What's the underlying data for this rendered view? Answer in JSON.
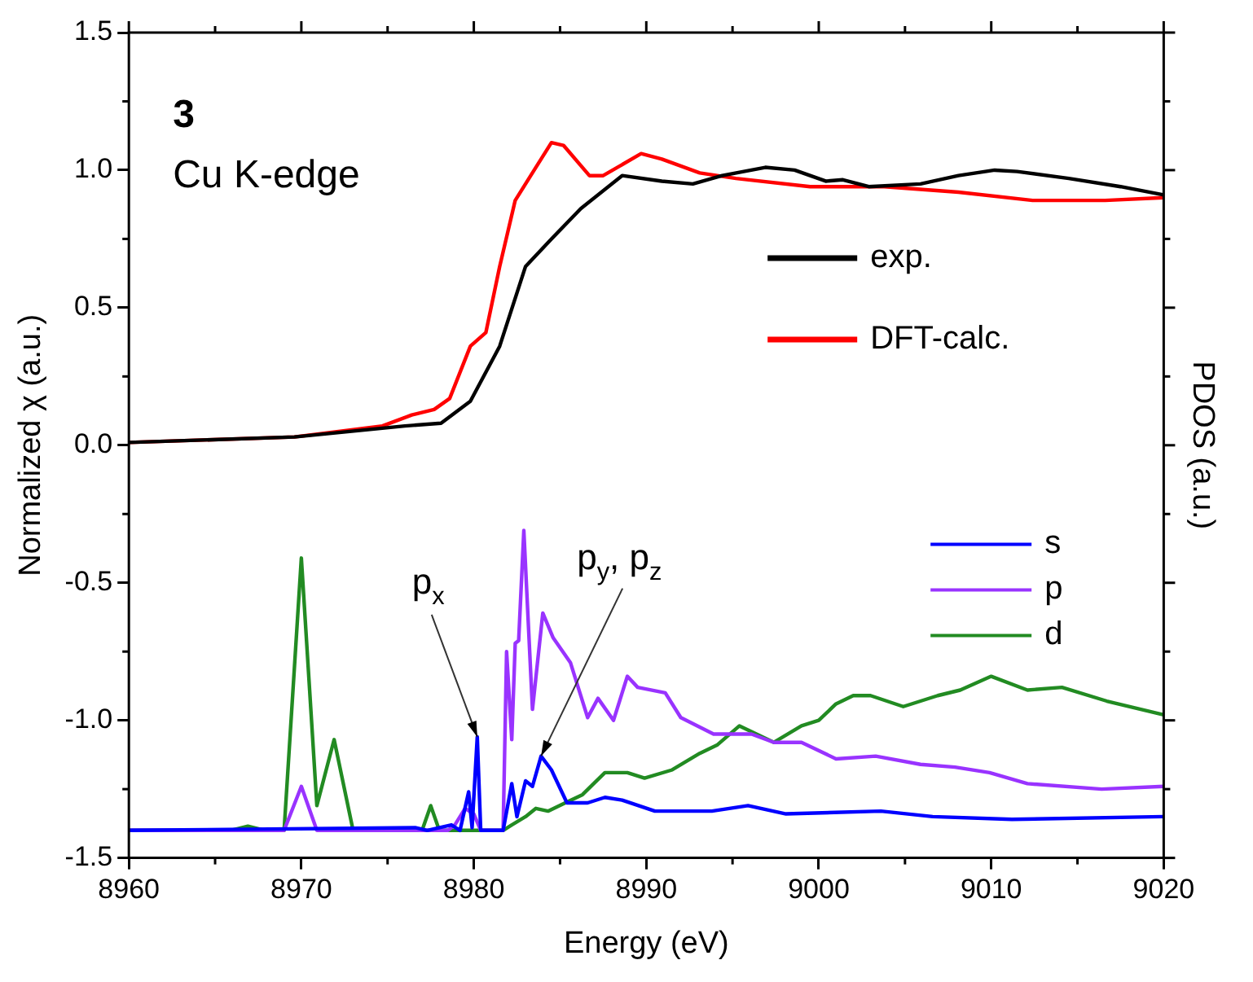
{
  "chart_data": {
    "type": "line",
    "title": "3",
    "subtitle": "Cu K-edge",
    "xlabel": "Energy (eV)",
    "ylabel": "Normalized χ (a.u.)",
    "y2label": "PDOS (a.u.)",
    "xlim": [
      8960,
      9020
    ],
    "xticks": [
      8960,
      8970,
      8980,
      8990,
      9000,
      9010,
      9020
    ],
    "ylim": [
      -1.5,
      1.5
    ],
    "yticks": [
      -1.5,
      {
        "value": -1,
        "label": "-1.0"
      },
      -0.5,
      {
        "value": 0,
        "label": "0.0"
      },
      0.5,
      {
        "value": 1,
        "label": "1.0"
      },
      1.5
    ],
    "grid": false,
    "legend": "right",
    "marker": "none",
    "line_style": "solid",
    "series": [
      {
        "name": "exp.",
        "color": "#000000",
        "x": [
          8960,
          8969.6,
          8976,
          8978.1,
          8979.8,
          8981.5,
          8983,
          8984.5,
          8986.2,
          8988.6,
          8990.9,
          8992.7,
          8994.4,
          8996.9,
          8998.6,
          9000.4,
          9001.4,
          9002.9,
          9005.9,
          9008.1,
          9010.2,
          9011.5,
          9014.5,
          9017.5,
          9020
        ],
        "values": [
          0.01,
          0.03,
          0.07,
          0.08,
          0.16,
          0.36,
          0.65,
          0.75,
          0.86,
          0.98,
          0.96,
          0.95,
          0.98,
          1.01,
          1.0,
          0.96,
          0.965,
          0.94,
          0.95,
          0.98,
          1.0,
          0.995,
          0.97,
          0.94,
          0.91
        ]
      },
      {
        "name": "DFT-calc.",
        "color": "#ff0000",
        "x": [
          8960,
          8969.6,
          8974.7,
          8976.4,
          8977.7,
          8978.6,
          8979.8,
          8980.7,
          8981.5,
          8982.4,
          8983.3,
          8984.5,
          8985.2,
          8986.7,
          8987.5,
          8989.7,
          8990.9,
          8993.1,
          8995.2,
          8999.5,
          9003.8,
          9008.1,
          9012.4,
          9016.6,
          9020
        ],
        "values": [
          0.01,
          0.03,
          0.07,
          0.11,
          0.13,
          0.17,
          0.36,
          0.41,
          0.65,
          0.89,
          0.98,
          1.1,
          1.09,
          0.98,
          0.98,
          1.06,
          1.04,
          0.99,
          0.97,
          0.94,
          0.94,
          0.92,
          0.89,
          0.89,
          0.9
        ]
      },
      {
        "name": "s",
        "color": "#0000ff",
        "x": [
          8960,
          8976.6,
          8977.3,
          8978.7,
          8979.2,
          8979.7,
          8979.9,
          8980.2,
          8980.4,
          8981.7,
          8982.2,
          8982.5,
          8983,
          8983.4,
          8983.9,
          8984.5,
          8985.4,
          8986.6,
          8987.6,
          8988.6,
          8990.5,
          8993.8,
          8995.9,
          8998.1,
          9003.6,
          9006.6,
          9011.2,
          9020
        ],
        "values": [
          -1.4,
          -1.39,
          -1.4,
          -1.38,
          -1.4,
          -1.26,
          -1.39,
          -1.06,
          -1.4,
          -1.4,
          -1.23,
          -1.35,
          -1.22,
          -1.24,
          -1.13,
          -1.18,
          -1.3,
          -1.3,
          -1.28,
          -1.29,
          -1.33,
          -1.33,
          -1.31,
          -1.34,
          -1.33,
          -1.35,
          -1.36,
          -1.35
        ]
      },
      {
        "name": "p",
        "color": "#9933ff",
        "x": [
          8960,
          8969,
          8970,
          8970.9,
          8978.5,
          8978.9,
          8979.5,
          8980,
          8980.4,
          8981.7,
          8981.9,
          8982.2,
          8982.4,
          8982.6,
          8982.9,
          8983.4,
          8984,
          8984.6,
          8985.6,
          8986.6,
          8987.2,
          8988.1,
          8988.9,
          8989.5,
          8991.1,
          8992,
          8993.9,
          8996.1,
          8997.4,
          8999,
          9001,
          9003.3,
          9005.9,
          9007.9,
          9009.9,
          9012.1,
          9016.4,
          9020
        ],
        "values": [
          -1.4,
          -1.4,
          -1.24,
          -1.4,
          -1.4,
          -1.38,
          -1.32,
          -1.34,
          -1.4,
          -1.4,
          -0.75,
          -1.07,
          -0.72,
          -0.71,
          -0.31,
          -0.96,
          -0.61,
          -0.7,
          -0.79,
          -0.99,
          -0.92,
          -1.0,
          -0.84,
          -0.88,
          -0.9,
          -0.99,
          -1.05,
          -1.05,
          -1.08,
          -1.08,
          -1.14,
          -1.13,
          -1.16,
          -1.17,
          -1.19,
          -1.23,
          -1.25,
          -1.24
        ]
      },
      {
        "name": "d",
        "color": "#228b22",
        "x": [
          8960,
          8965.9,
          8966.9,
          8967.9,
          8969,
          8970,
          8970.9,
          8971.9,
          8973,
          8977,
          8977.5,
          8978,
          8981.7,
          8982.2,
          8983,
          8983.6,
          8984.3,
          8985.3,
          8986.3,
          8987.6,
          8988.9,
          8989.9,
          8991.5,
          8993.1,
          8994.1,
          8995.4,
          8997.4,
          8999,
          9000,
          9001,
          9002,
          9003,
          9004.9,
          9006.9,
          9008.2,
          9010,
          9012.1,
          9014.1,
          9016.7,
          9020
        ],
        "values": [
          -1.4,
          -1.4,
          -1.385,
          -1.4,
          -1.4,
          -0.41,
          -1.31,
          -1.07,
          -1.4,
          -1.4,
          -1.31,
          -1.4,
          -1.4,
          -1.38,
          -1.35,
          -1.32,
          -1.33,
          -1.3,
          -1.27,
          -1.19,
          -1.19,
          -1.21,
          -1.18,
          -1.12,
          -1.09,
          -1.02,
          -1.08,
          -1.02,
          -1.0,
          -0.94,
          -0.91,
          -0.91,
          -0.95,
          -0.91,
          -0.89,
          -0.84,
          -0.89,
          -0.88,
          -0.93,
          -0.98
        ]
      }
    ],
    "annotations": [
      {
        "text": "p$_{x}$",
        "x": 8980.2,
        "y": -1.06
      },
      {
        "text": "p$_{y}$, p$_{z}$",
        "x": 8983.9,
        "y": -1.13
      }
    ]
  }
}
